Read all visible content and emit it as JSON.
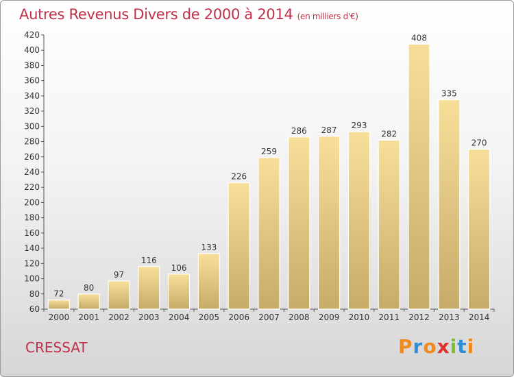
{
  "title": "Autres Revenus Divers de 2000 à 2014",
  "unit": "(en milliers d'€)",
  "footer": {
    "place": "CRESSAT"
  },
  "brand": {
    "letters": [
      "P",
      "r",
      "o",
      "x",
      "i",
      "t",
      "i"
    ],
    "colors": [
      "#f08a1c",
      "#2f8fd6",
      "#f08a1c",
      "#e0312a",
      "#7bbf2a",
      "#2f8fd6",
      "#f08a1c"
    ]
  },
  "colors": {
    "bar_top": "#f7df9a",
    "bar_bottom": "#c7ab68",
    "title": "#c0304a"
  },
  "chart_data": {
    "type": "bar",
    "categories": [
      "2000",
      "2001",
      "2002",
      "2003",
      "2004",
      "2005",
      "2006",
      "2007",
      "2008",
      "2009",
      "2010",
      "2011",
      "2012",
      "2013",
      "2014"
    ],
    "values": [
      72,
      80,
      97,
      116,
      106,
      133,
      226,
      259,
      286,
      287,
      293,
      282,
      408,
      335,
      270
    ],
    "ylim": [
      60,
      420
    ],
    "yticks": [
      60,
      80,
      100,
      120,
      140,
      160,
      180,
      200,
      220,
      240,
      260,
      280,
      300,
      320,
      340,
      360,
      380,
      400,
      420
    ],
    "grid": false,
    "data_labels": true
  }
}
